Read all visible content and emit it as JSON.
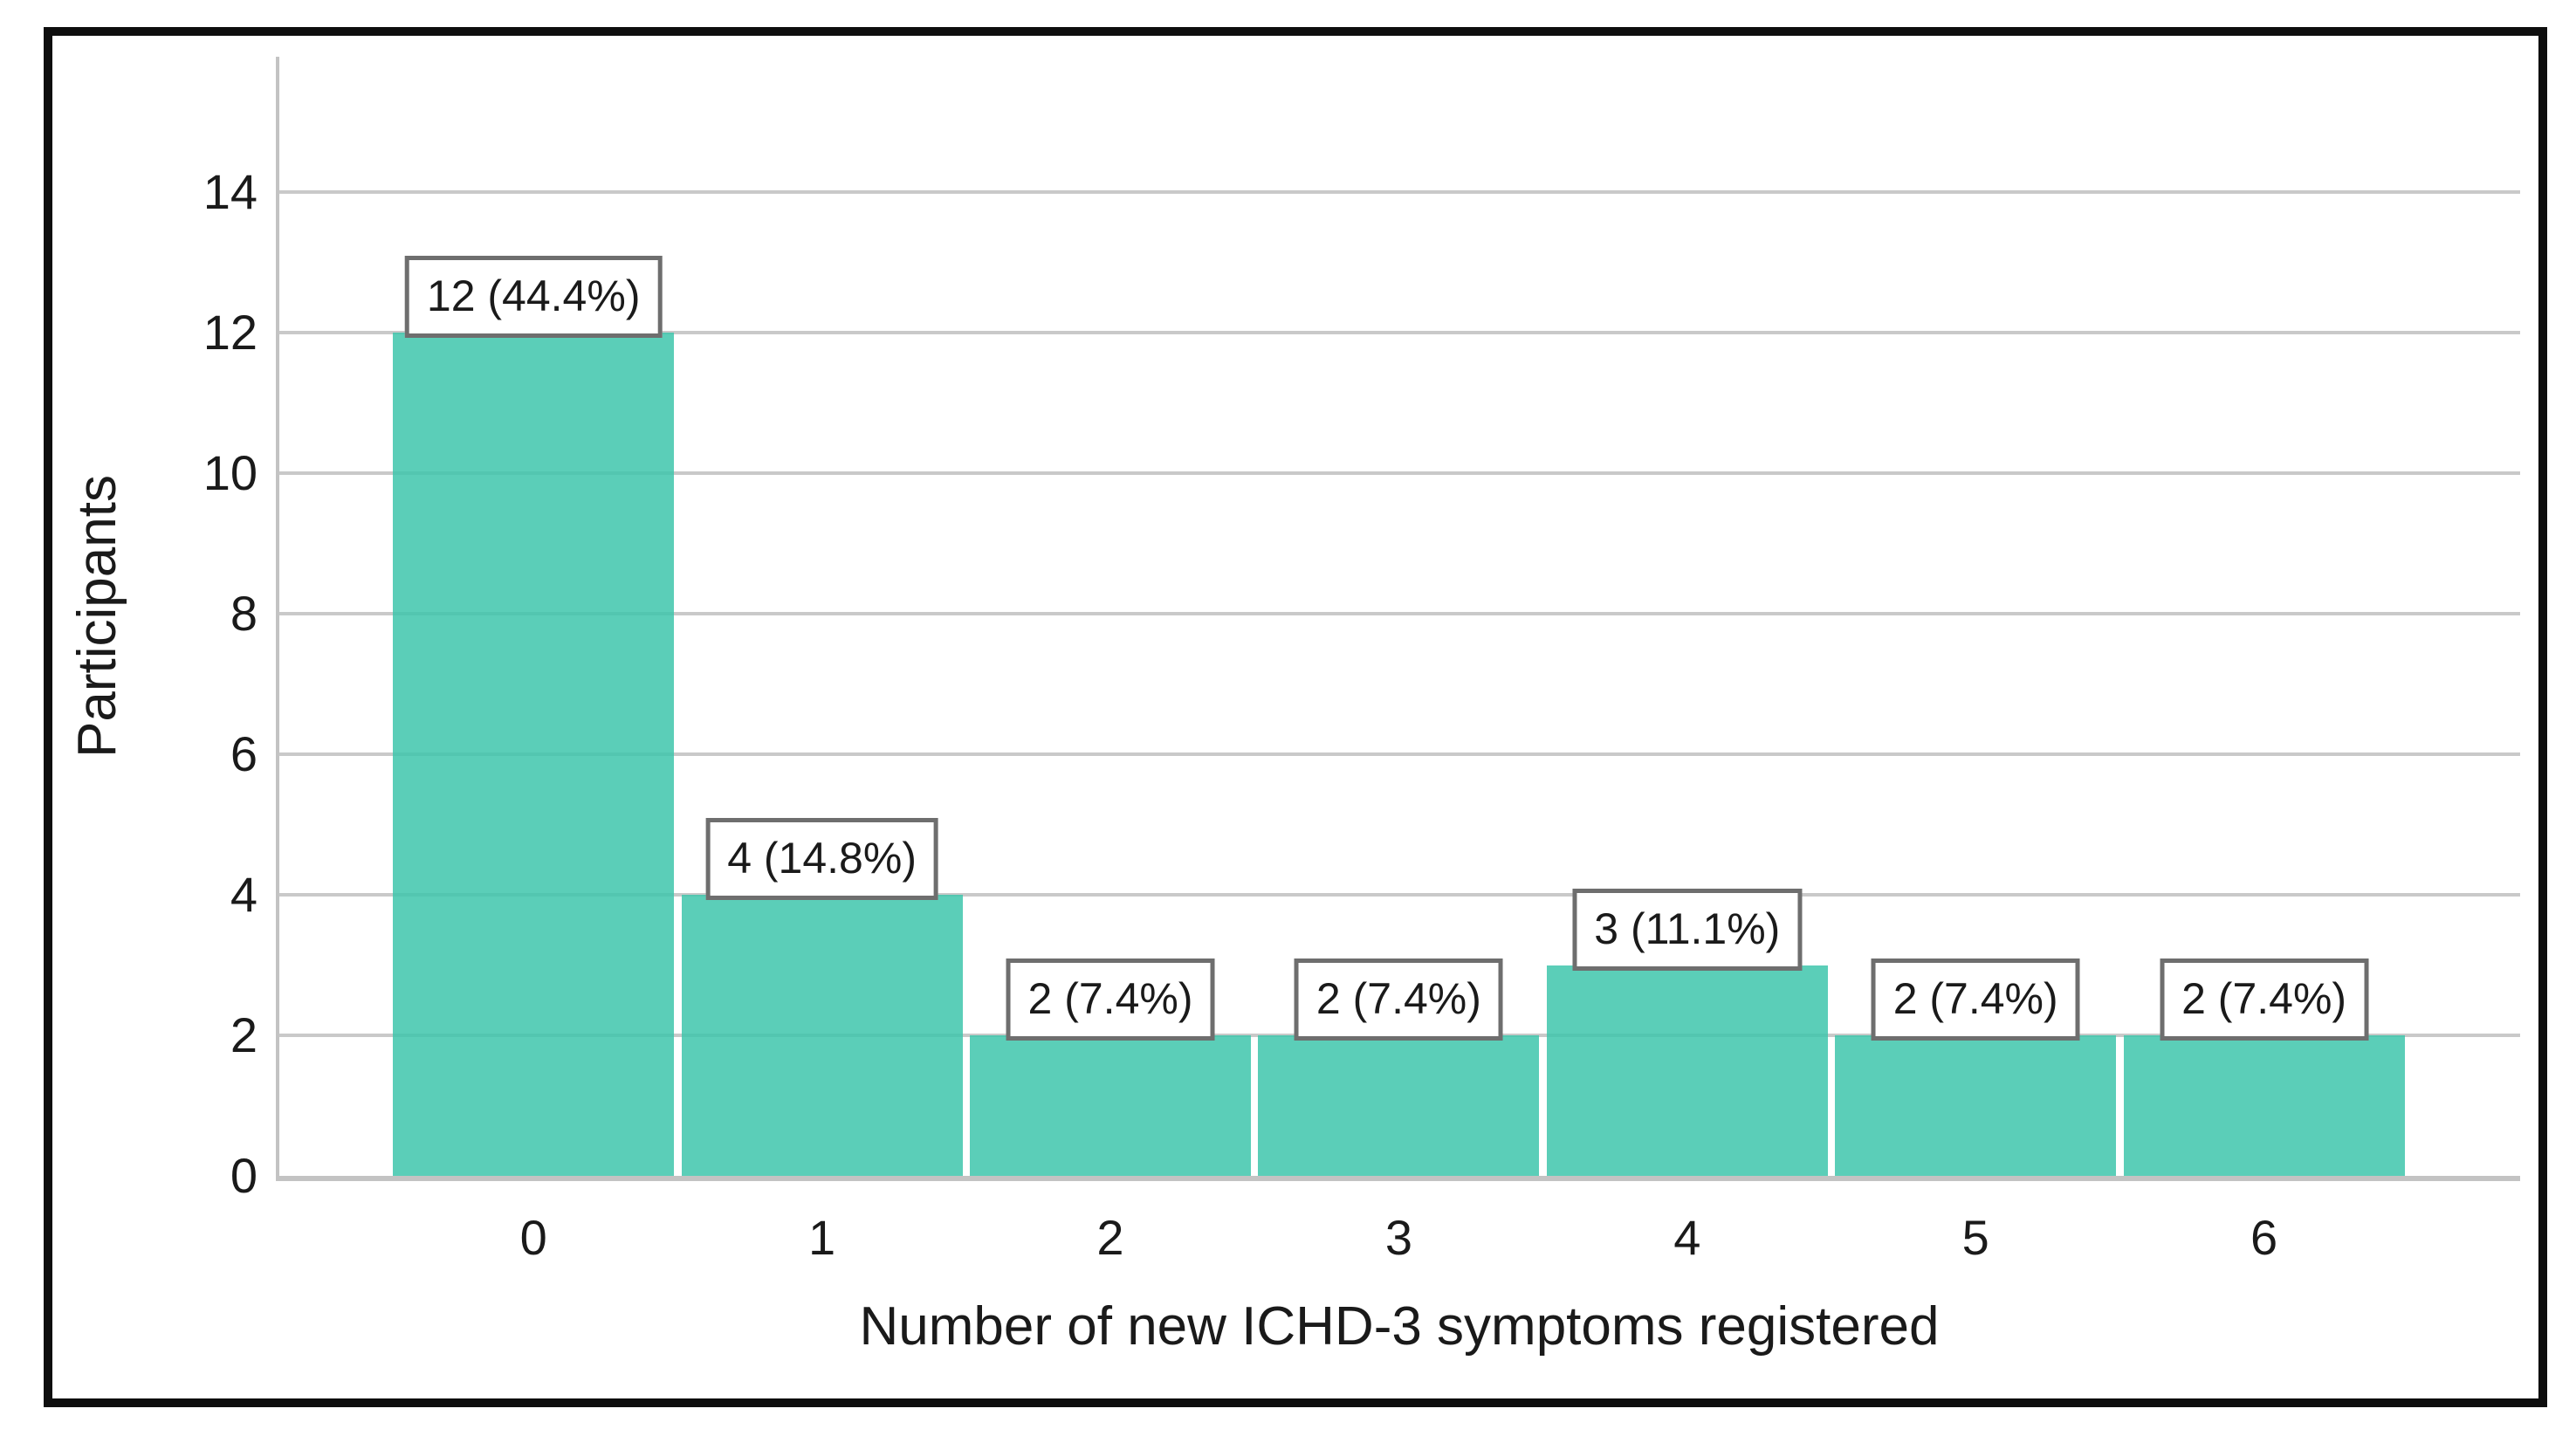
{
  "chart_data": {
    "type": "bar",
    "title": "",
    "xlabel": "Number of new ICHD-3 symptoms registered",
    "ylabel": "Participants",
    "categories": [
      "0",
      "1",
      "2",
      "3",
      "4",
      "5",
      "6"
    ],
    "values": [
      12,
      4,
      2,
      2,
      3,
      2,
      2
    ],
    "bar_labels": [
      "12 (44.4%)",
      "4 (14.8%)",
      "2 (7.4%)",
      "2 (7.4%)",
      "3 (11.1%)",
      "2 (7.4%)",
      "2 (7.4%)"
    ],
    "percentages": [
      44.4,
      14.8,
      7.4,
      7.4,
      11.1,
      7.4,
      7.4
    ],
    "yticks": [
      0,
      2,
      4,
      6,
      8,
      10,
      12,
      14
    ],
    "ylim": [
      0,
      15.9
    ],
    "grid": "horizontal",
    "legend": "none",
    "colors": {
      "bar": "#3ec6ac",
      "bar_opacity": 0.85,
      "gridline": "#c9c9c9",
      "axis_line": "#c3c3c3",
      "label_box_border": "#6e6e6e",
      "label_box_bg": "#ffffff",
      "text": "#1a1a1a",
      "frame": "#0e0e0e"
    }
  }
}
